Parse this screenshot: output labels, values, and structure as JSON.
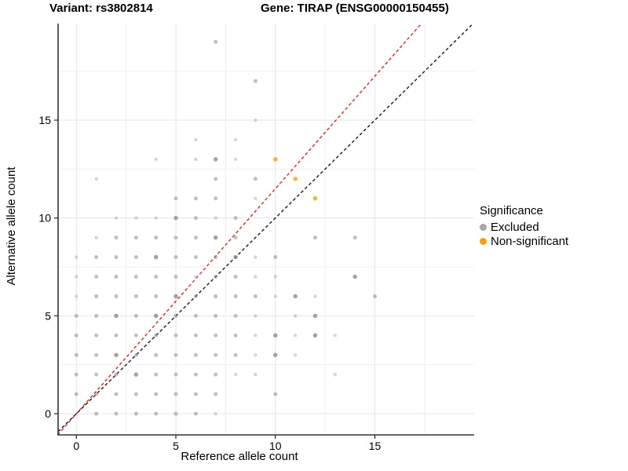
{
  "titles": {
    "variant": "Variant: rs3802814",
    "gene": "Gene: TIRAP (ENSG00000150455)"
  },
  "legend": {
    "title": "Significance",
    "items": [
      {
        "label": "Excluded",
        "color": "#A8A8A8"
      },
      {
        "label": "Non-significant",
        "color": "#FB9E0A"
      }
    ]
  },
  "chart_data": {
    "type": "scatter",
    "xlabel": "Reference allele count",
    "ylabel": "Alternative allele count",
    "xlim": [
      -0.95,
      19.95
    ],
    "ylim": [
      -0.95,
      19.95
    ],
    "x_ticks": [
      0,
      5,
      10,
      15
    ],
    "y_ticks": [
      0,
      5,
      10,
      15
    ],
    "grid_step": 2.5,
    "grid_max": 17.5,
    "grid_major_color": "#E4E4E4",
    "grid_minor_color": "#EFEFEF",
    "axis_line_color": "#333333",
    "opacity_levels": {
      "1": 0.35,
      "2": 0.55,
      "3": 0.8
    },
    "series": [
      {
        "name": "Excluded",
        "color": "#8C8C8C",
        "points": [
          [
            7,
            19,
            2
          ],
          [
            9,
            17,
            2
          ],
          [
            9,
            15,
            1
          ],
          [
            6,
            14,
            1
          ],
          [
            8,
            14,
            1
          ],
          [
            4,
            13,
            1
          ],
          [
            6,
            13,
            1
          ],
          [
            7,
            13,
            3
          ],
          [
            8,
            13,
            1
          ],
          [
            1,
            12,
            1
          ],
          [
            7,
            12,
            2
          ],
          [
            9,
            12,
            2
          ],
          [
            5,
            11,
            2
          ],
          [
            6,
            11,
            2
          ],
          [
            7,
            11,
            2
          ],
          [
            9,
            11,
            1
          ],
          [
            2,
            10,
            1
          ],
          [
            3,
            10,
            1
          ],
          [
            4,
            10,
            1
          ],
          [
            5,
            10,
            3
          ],
          [
            6,
            10,
            2
          ],
          [
            7,
            10,
            1
          ],
          [
            8,
            10,
            2
          ],
          [
            1,
            9,
            1
          ],
          [
            2,
            9,
            2
          ],
          [
            3,
            9,
            2
          ],
          [
            4,
            9,
            2
          ],
          [
            5,
            9,
            2
          ],
          [
            6,
            9,
            2
          ],
          [
            7,
            9,
            3
          ],
          [
            8,
            9,
            2
          ],
          [
            12,
            9,
            2
          ],
          [
            14,
            9,
            2
          ],
          [
            0,
            8,
            1
          ],
          [
            1,
            8,
            2
          ],
          [
            2,
            8,
            2
          ],
          [
            3,
            8,
            2
          ],
          [
            4,
            8,
            3
          ],
          [
            5,
            8,
            2
          ],
          [
            6,
            8,
            2
          ],
          [
            7,
            8,
            2
          ],
          [
            8,
            8,
            3
          ],
          [
            9,
            8,
            1
          ],
          [
            10,
            8,
            2
          ],
          [
            0,
            7,
            1
          ],
          [
            1,
            7,
            2
          ],
          [
            2,
            7,
            2
          ],
          [
            3,
            7,
            2
          ],
          [
            4,
            7,
            2
          ],
          [
            5,
            7,
            2
          ],
          [
            6,
            7,
            1
          ],
          [
            7,
            7,
            2
          ],
          [
            8,
            7,
            2
          ],
          [
            9,
            7,
            1
          ],
          [
            10,
            7,
            1
          ],
          [
            14,
            7,
            3
          ],
          [
            0,
            6,
            1
          ],
          [
            1,
            6,
            2
          ],
          [
            2,
            6,
            2
          ],
          [
            3,
            6,
            2
          ],
          [
            4,
            6,
            2
          ],
          [
            5,
            6,
            3
          ],
          [
            6,
            6,
            2
          ],
          [
            7,
            6,
            2
          ],
          [
            8,
            6,
            2
          ],
          [
            9,
            6,
            2
          ],
          [
            10,
            6,
            1
          ],
          [
            11,
            6,
            3
          ],
          [
            12,
            6,
            1
          ],
          [
            15,
            6,
            2
          ],
          [
            0,
            5,
            2
          ],
          [
            1,
            5,
            2
          ],
          [
            2,
            5,
            3
          ],
          [
            3,
            5,
            2
          ],
          [
            4,
            5,
            3
          ],
          [
            5,
            5,
            2
          ],
          [
            6,
            5,
            2
          ],
          [
            7,
            5,
            2
          ],
          [
            8,
            5,
            2
          ],
          [
            9,
            5,
            1
          ],
          [
            11,
            5,
            1
          ],
          [
            12,
            5,
            3
          ],
          [
            0,
            4,
            2
          ],
          [
            1,
            4,
            2
          ],
          [
            2,
            4,
            2
          ],
          [
            3,
            4,
            2
          ],
          [
            4,
            4,
            2
          ],
          [
            5,
            4,
            2
          ],
          [
            6,
            4,
            2
          ],
          [
            7,
            4,
            2
          ],
          [
            8,
            4,
            2
          ],
          [
            9,
            4,
            1
          ],
          [
            10,
            4,
            3
          ],
          [
            11,
            4,
            1
          ],
          [
            12,
            4,
            3
          ],
          [
            13,
            4,
            1
          ],
          [
            0,
            3,
            2
          ],
          [
            1,
            3,
            2
          ],
          [
            2,
            3,
            3
          ],
          [
            3,
            3,
            2
          ],
          [
            4,
            3,
            2
          ],
          [
            5,
            3,
            2
          ],
          [
            6,
            3,
            2
          ],
          [
            7,
            3,
            2
          ],
          [
            8,
            3,
            2
          ],
          [
            9,
            3,
            1
          ],
          [
            10,
            3,
            3
          ],
          [
            11,
            3,
            1
          ],
          [
            0,
            2,
            2
          ],
          [
            1,
            2,
            2
          ],
          [
            2,
            2,
            2
          ],
          [
            3,
            2,
            3
          ],
          [
            4,
            2,
            2
          ],
          [
            5,
            2,
            2
          ],
          [
            6,
            2,
            2
          ],
          [
            7,
            2,
            2
          ],
          [
            8,
            2,
            1
          ],
          [
            9,
            2,
            1
          ],
          [
            13,
            2,
            1
          ],
          [
            0,
            1,
            2
          ],
          [
            1,
            1,
            2
          ],
          [
            2,
            1,
            2
          ],
          [
            3,
            1,
            2
          ],
          [
            4,
            1,
            2
          ],
          [
            5,
            1,
            2
          ],
          [
            6,
            1,
            2
          ],
          [
            7,
            1,
            2
          ],
          [
            10,
            1,
            2
          ],
          [
            1,
            0,
            2
          ],
          [
            2,
            0,
            2
          ],
          [
            3,
            0,
            2
          ],
          [
            4,
            0,
            2
          ],
          [
            5,
            0,
            2
          ],
          [
            6,
            0,
            2
          ],
          [
            7,
            0,
            1
          ]
        ]
      },
      {
        "name": "Non-significant",
        "color": "#FB9E0A",
        "points": [
          [
            10,
            13,
            3
          ],
          [
            11,
            12,
            3
          ],
          [
            12,
            11,
            3
          ]
        ]
      }
    ],
    "lines": [
      {
        "name": "identity-line",
        "color": "#1A1A1A",
        "dash": "4 3",
        "from": [
          -0.92,
          -0.92
        ],
        "to": [
          19.93,
          19.93
        ]
      },
      {
        "name": "expected-ratio-line",
        "color": "#E9261E",
        "dash": "4 3",
        "slope": 1.15,
        "from": [
          -0.94,
          -1.08
        ],
        "to": [
          17.35,
          19.95
        ]
      }
    ]
  }
}
